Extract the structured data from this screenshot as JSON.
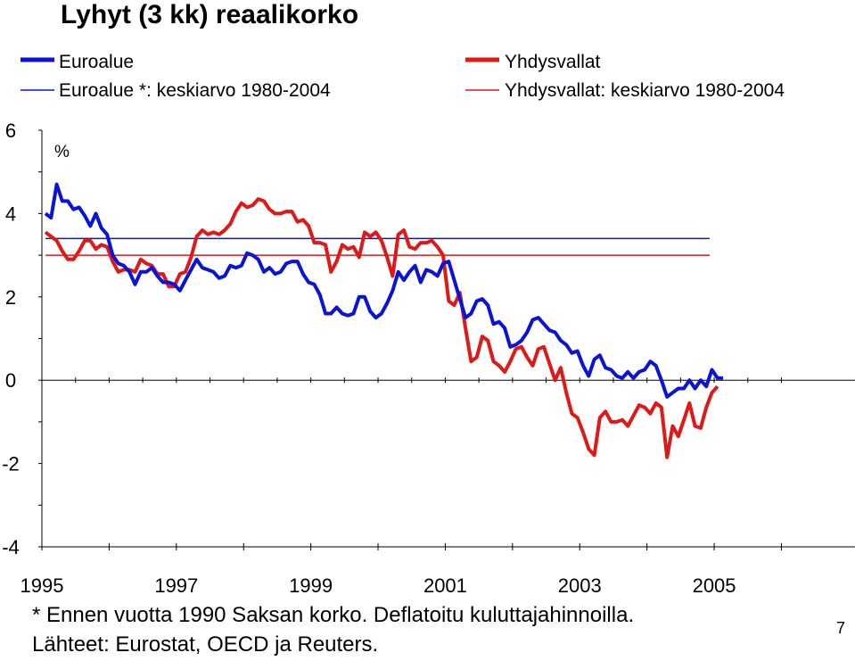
{
  "title": "Lyhyt (3 kk) reaalikorko",
  "legend": {
    "euro": "Euroalue",
    "euro_avg": "Euroalue *: keskiarvo 1980-2004",
    "us": "Yhdysvallat",
    "us_avg": "Yhdysvallat: keskiarvo 1980-2004"
  },
  "footnote": "* Ennen vuotta 1990 Saksan korko. Deflatoitu kuluttajahinnoilla.",
  "source": "Lähteet: Eurostat, OECD ja Reuters.",
  "page_number": "7",
  "colors": {
    "euro": "#0a14d8",
    "us": "#e01818",
    "euro_avg": "#0a14d8",
    "us_avg": "#e01818"
  },
  "chart_data": {
    "type": "line",
    "ylabel": "%",
    "ylim": [
      -4,
      6
    ],
    "yticks": [
      "6",
      "4",
      "2",
      "0",
      "-2",
      "-4"
    ],
    "xlim": [
      1995,
      2006
    ],
    "xticks": [
      "1995",
      "1997",
      "1999",
      "2001",
      "2003",
      "2005"
    ],
    "series": [
      {
        "name": "Euroalue",
        "x_start": 1995,
        "step": 0.0833,
        "values": [
          4.0,
          3.9,
          4.7,
          4.3,
          4.3,
          4.1,
          4.15,
          3.95,
          3.7,
          4.0,
          3.65,
          3.5,
          3.0,
          2.8,
          2.75,
          2.6,
          2.3,
          2.6,
          2.6,
          2.7,
          2.5,
          2.35,
          2.35,
          2.3,
          2.15,
          2.4,
          2.65,
          2.9,
          2.7,
          2.65,
          2.6,
          2.45,
          2.5,
          2.75,
          2.7,
          2.75,
          3.05,
          3.0,
          2.9,
          2.6,
          2.7,
          2.55,
          2.6,
          2.8,
          2.85,
          2.85,
          2.55,
          2.35,
          2.3,
          2.05,
          1.6,
          1.6,
          1.75,
          1.6,
          1.55,
          1.6,
          2.0,
          2.0,
          1.65,
          1.5,
          1.6,
          1.85,
          2.15,
          2.6,
          2.4,
          2.6,
          2.75,
          2.35,
          2.65,
          2.6,
          2.5,
          2.8,
          2.85,
          2.4,
          1.95,
          1.5,
          1.6,
          1.9,
          1.95,
          1.8,
          1.35,
          1.4,
          1.25,
          0.8,
          0.85,
          0.95,
          1.15,
          1.45,
          1.5,
          1.35,
          1.2,
          1.15,
          0.95,
          0.85,
          0.65,
          0.7,
          0.35,
          0.1,
          0.5,
          0.6,
          0.3,
          0.25,
          0.1,
          0.05,
          0.2,
          0.05,
          0.2,
          0.25,
          0.45,
          0.35,
          0.0,
          -0.4,
          -0.3,
          -0.2,
          -0.2,
          0.0,
          -0.2,
          0.0,
          -0.15,
          0.25,
          0.05,
          0.05
        ]
      },
      {
        "name": "Yhdysvallat",
        "x_start": 1995,
        "step": 0.0833,
        "values": [
          3.55,
          3.45,
          3.35,
          3.1,
          2.9,
          2.9,
          3.1,
          3.35,
          3.35,
          3.15,
          3.25,
          3.2,
          2.85,
          2.6,
          2.65,
          2.65,
          2.6,
          2.9,
          2.8,
          2.75,
          2.55,
          2.55,
          2.25,
          2.25,
          2.55,
          2.6,
          2.95,
          3.45,
          3.6,
          3.5,
          3.55,
          3.5,
          3.6,
          3.75,
          4.05,
          4.25,
          4.15,
          4.2,
          4.35,
          4.3,
          4.1,
          4.0,
          4.0,
          4.05,
          4.05,
          3.8,
          3.85,
          3.7,
          3.3,
          3.3,
          3.25,
          2.6,
          2.85,
          3.25,
          3.15,
          3.2,
          2.95,
          3.55,
          3.45,
          3.55,
          3.35,
          2.95,
          2.5,
          3.5,
          3.6,
          3.2,
          3.15,
          3.3,
          3.3,
          3.35,
          3.2,
          3.0,
          1.9,
          1.8,
          2.1,
          1.25,
          0.45,
          0.55,
          1.05,
          0.95,
          0.45,
          0.35,
          0.2,
          0.45,
          0.75,
          0.8,
          0.55,
          0.35,
          0.75,
          0.8,
          0.4,
          0.0,
          0.3,
          -0.3,
          -0.8,
          -0.9,
          -1.25,
          -1.65,
          -1.8,
          -0.9,
          -0.75,
          -1.0,
          -1.0,
          -0.95,
          -1.1,
          -0.85,
          -0.6,
          -0.65,
          -0.8,
          -0.55,
          -0.65,
          -1.85,
          -1.1,
          -1.35,
          -0.95,
          -0.55,
          -1.1,
          -1.15,
          -0.65,
          -0.3,
          -0.15
        ]
      },
      {
        "name": "Euroalue *: keskiarvo 1980-2004",
        "x_range": [
          1995,
          2005.0
        ],
        "value": 3.4
      },
      {
        "name": "Yhdysvallat: keskiarvo 1980-2004",
        "x_range": [
          1995,
          2005.0
        ],
        "value": 3.0
      }
    ]
  }
}
